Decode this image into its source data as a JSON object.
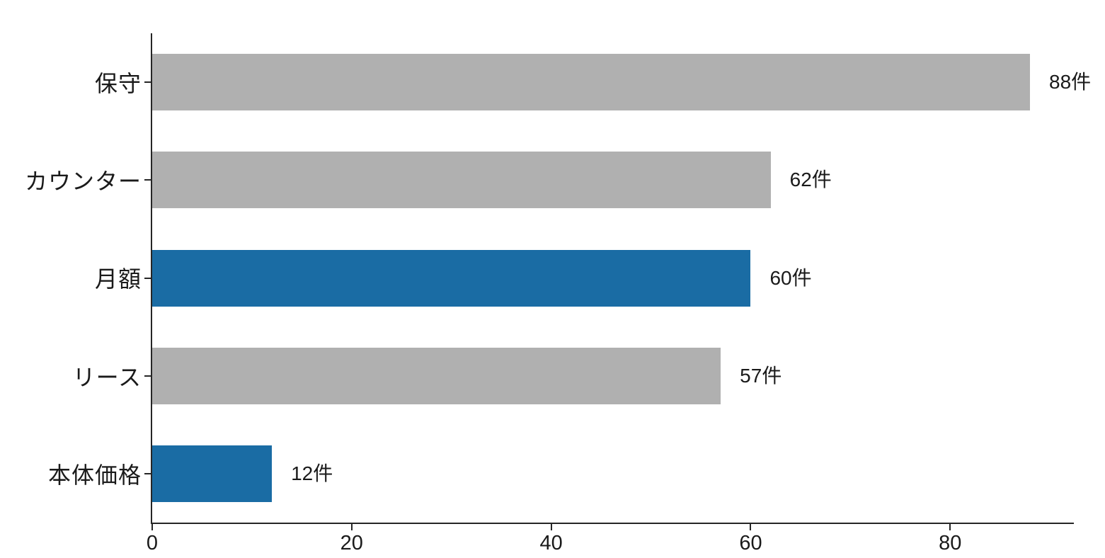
{
  "chart_data": {
    "type": "bar",
    "orientation": "horizontal",
    "title": "",
    "xlabel": "",
    "ylabel": "",
    "categories": [
      "保守",
      "カウンター",
      "月額",
      "リース",
      "本体価格"
    ],
    "values": [
      88,
      62,
      60,
      57,
      12
    ],
    "value_labels": [
      "88件",
      "62件",
      "60件",
      "57件",
      "12件"
    ],
    "unit_suffix": "件",
    "bar_colors": [
      "#b0b0b0",
      "#b0b0b0",
      "#1a6ca4",
      "#b0b0b0",
      "#1a6ca4"
    ],
    "x_ticks": [
      0,
      20,
      40,
      60,
      80
    ],
    "xlim": [
      0,
      92.4
    ],
    "grid": false,
    "legend": null,
    "colors": {
      "highlight": "#1a6ca4",
      "muted": "#b0b0b0",
      "axis": "#262626",
      "text": "#1a1a1a",
      "background": "#ffffff"
    }
  }
}
